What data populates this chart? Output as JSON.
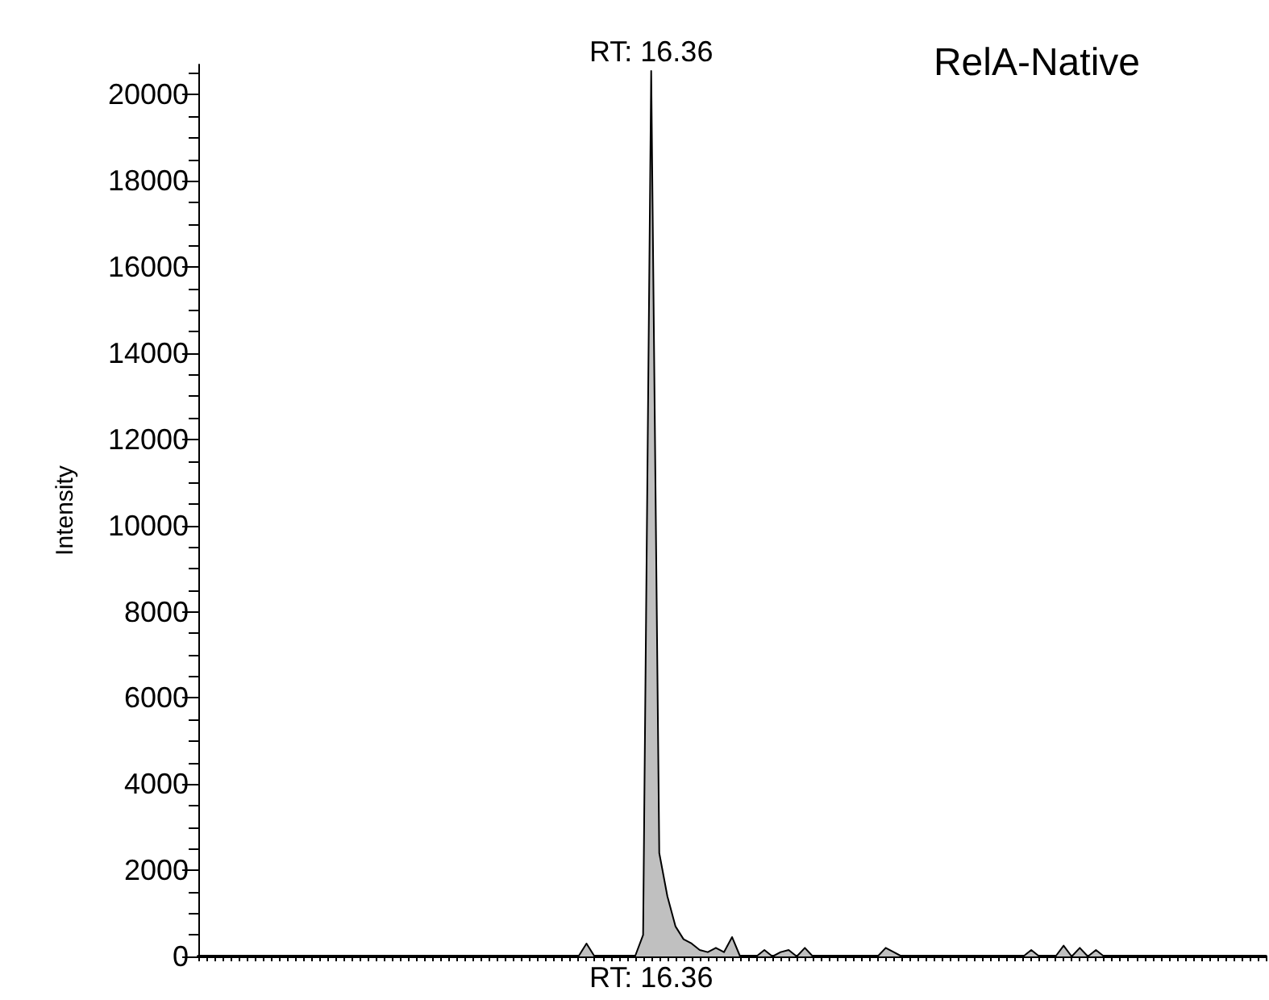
{
  "chart_data": {
    "type": "area",
    "title": "RelA-Native",
    "ylabel": "Intensity",
    "categories": [
      null,
      null,
      null,
      null,
      null,
      null,
      null,
      null,
      null,
      null,
      null,
      null,
      null,
      null,
      null,
      null,
      null,
      null,
      null,
      null,
      null,
      null,
      null,
      null,
      null,
      null,
      null,
      null,
      null,
      null,
      null,
      null,
      null,
      null,
      null,
      null,
      null,
      null,
      null,
      null,
      null,
      null,
      null,
      null,
      null,
      null,
      null,
      null,
      null,
      null,
      null,
      null,
      null,
      null,
      null,
      null,
      null,
      null,
      null,
      null,
      null,
      null,
      null,
      null,
      null,
      null,
      null,
      null,
      null,
      null,
      null,
      null,
      null,
      null,
      null,
      null,
      null,
      null,
      null,
      null,
      null,
      null,
      null,
      null,
      null,
      null,
      null,
      null,
      null,
      null,
      null,
      null,
      null,
      null,
      null,
      null,
      null,
      null,
      null,
      null,
      null,
      null,
      null,
      null,
      null,
      null,
      null,
      null,
      null,
      null,
      null,
      null,
      null,
      null,
      null,
      null,
      null,
      null,
      null,
      null,
      null,
      null,
      null,
      null,
      null,
      null,
      null,
      null,
      null,
      null,
      null,
      null,
      null
    ],
    "series": [
      {
        "color": "#c0c0c0",
        "values": [
          0,
          0,
          0,
          0,
          0,
          0,
          0,
          0,
          0,
          0,
          0,
          0,
          0,
          0,
          0,
          0,
          0,
          0,
          0,
          0,
          0,
          0,
          0,
          0,
          0,
          0,
          0,
          0,
          0,
          0,
          0,
          0,
          0,
          0,
          0,
          0,
          0,
          0,
          0,
          0,
          0,
          0,
          0,
          0,
          0,
          0,
          0,
          0,
          300,
          0,
          0,
          0,
          0,
          0,
          0,
          500,
          20550,
          2400,
          1400,
          700,
          400,
          300,
          150,
          100,
          200,
          100,
          450,
          0,
          0,
          0,
          150,
          0,
          100,
          150,
          0,
          200,
          0,
          0,
          0,
          0,
          0,
          0,
          0,
          0,
          0,
          200,
          100,
          0,
          0,
          0,
          0,
          0,
          0,
          0,
          0,
          0,
          0,
          0,
          0,
          0,
          0,
          0,
          0,
          150,
          0,
          0,
          0,
          250,
          0,
          200,
          0,
          150,
          0,
          0,
          0,
          0,
          0,
          0,
          0,
          0,
          0,
          0,
          0,
          0,
          0,
          0,
          0,
          0,
          0,
          0,
          0,
          0,
          0
        ]
      }
    ],
    "ylim": [
      0,
      20700
    ],
    "yticks": [
      0,
      2000,
      4000,
      6000,
      8000,
      10000,
      12000,
      14000,
      16000,
      18000,
      20000
    ],
    "tick_labels": "y",
    "grid": false,
    "annotations": [
      {
        "text": "RT: 16.36",
        "y": 20550
      },
      "RT: 16.36"
    ]
  }
}
